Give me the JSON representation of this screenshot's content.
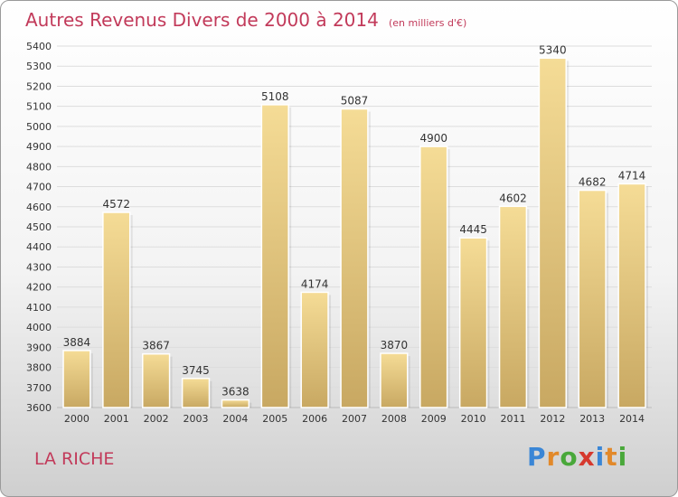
{
  "chart_data": {
    "type": "bar",
    "title": "Autres Revenus Divers de 2000 à 2014",
    "subtitle": "(en milliers d'€)",
    "categories": [
      "2000",
      "2001",
      "2002",
      "2003",
      "2004",
      "2005",
      "2006",
      "2007",
      "2008",
      "2009",
      "2010",
      "2011",
      "2012",
      "2013",
      "2014"
    ],
    "values": [
      3884,
      4572,
      3867,
      3745,
      3638,
      5108,
      4174,
      5087,
      3870,
      4900,
      4445,
      4602,
      5340,
      4682,
      4714
    ],
    "ylim": [
      3600,
      5400
    ],
    "yticks": [
      3600,
      3700,
      3800,
      3900,
      4000,
      4100,
      4200,
      4300,
      4400,
      4500,
      4600,
      4700,
      4800,
      4900,
      5000,
      5100,
      5200,
      5300,
      5400
    ],
    "grid": true,
    "bar_color_top": "#f5dc96",
    "bar_color_bottom": "#c8a862"
  },
  "footer": {
    "city": "LA RICHE",
    "logo": "Proxiti",
    "logo_colors": [
      "#3a86d6",
      "#e2892a",
      "#49a83a",
      "#d6392e",
      "#3a86d6",
      "#e2892a",
      "#49a83a"
    ]
  }
}
